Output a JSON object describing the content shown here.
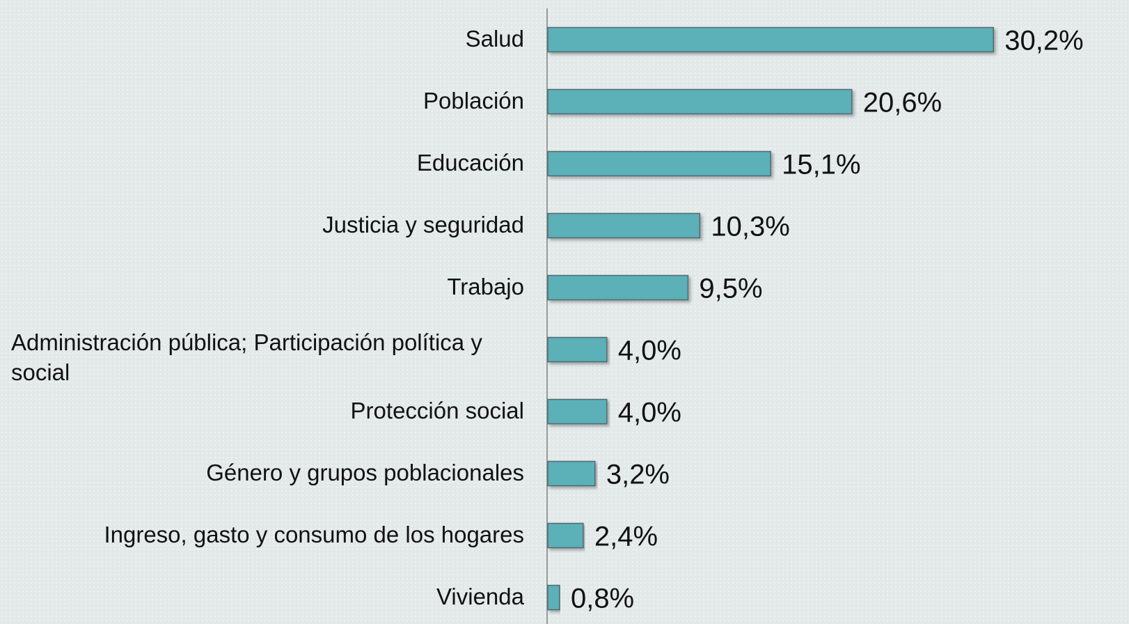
{
  "chart_data": {
    "type": "bar",
    "orientation": "horizontal",
    "categories": [
      "Salud",
      "Población",
      "Educación",
      "Justicia y seguridad",
      "Trabajo",
      "Administración pública; Participación política y social",
      "Protección social",
      "Género y grupos poblacionales",
      "Ingreso, gasto y consumo de los hogares",
      "Vivienda"
    ],
    "values": [
      30.2,
      20.6,
      15.1,
      10.3,
      9.5,
      4.0,
      4.0,
      3.2,
      2.4,
      0.8
    ],
    "value_labels": [
      "30,2%",
      "20,6%",
      "15,1%",
      "10,3%",
      "9,5%",
      "4,0%",
      "4,0%",
      "3,2%",
      "2,4%",
      "0,8%"
    ],
    "color": "#5bb0b8"
  }
}
